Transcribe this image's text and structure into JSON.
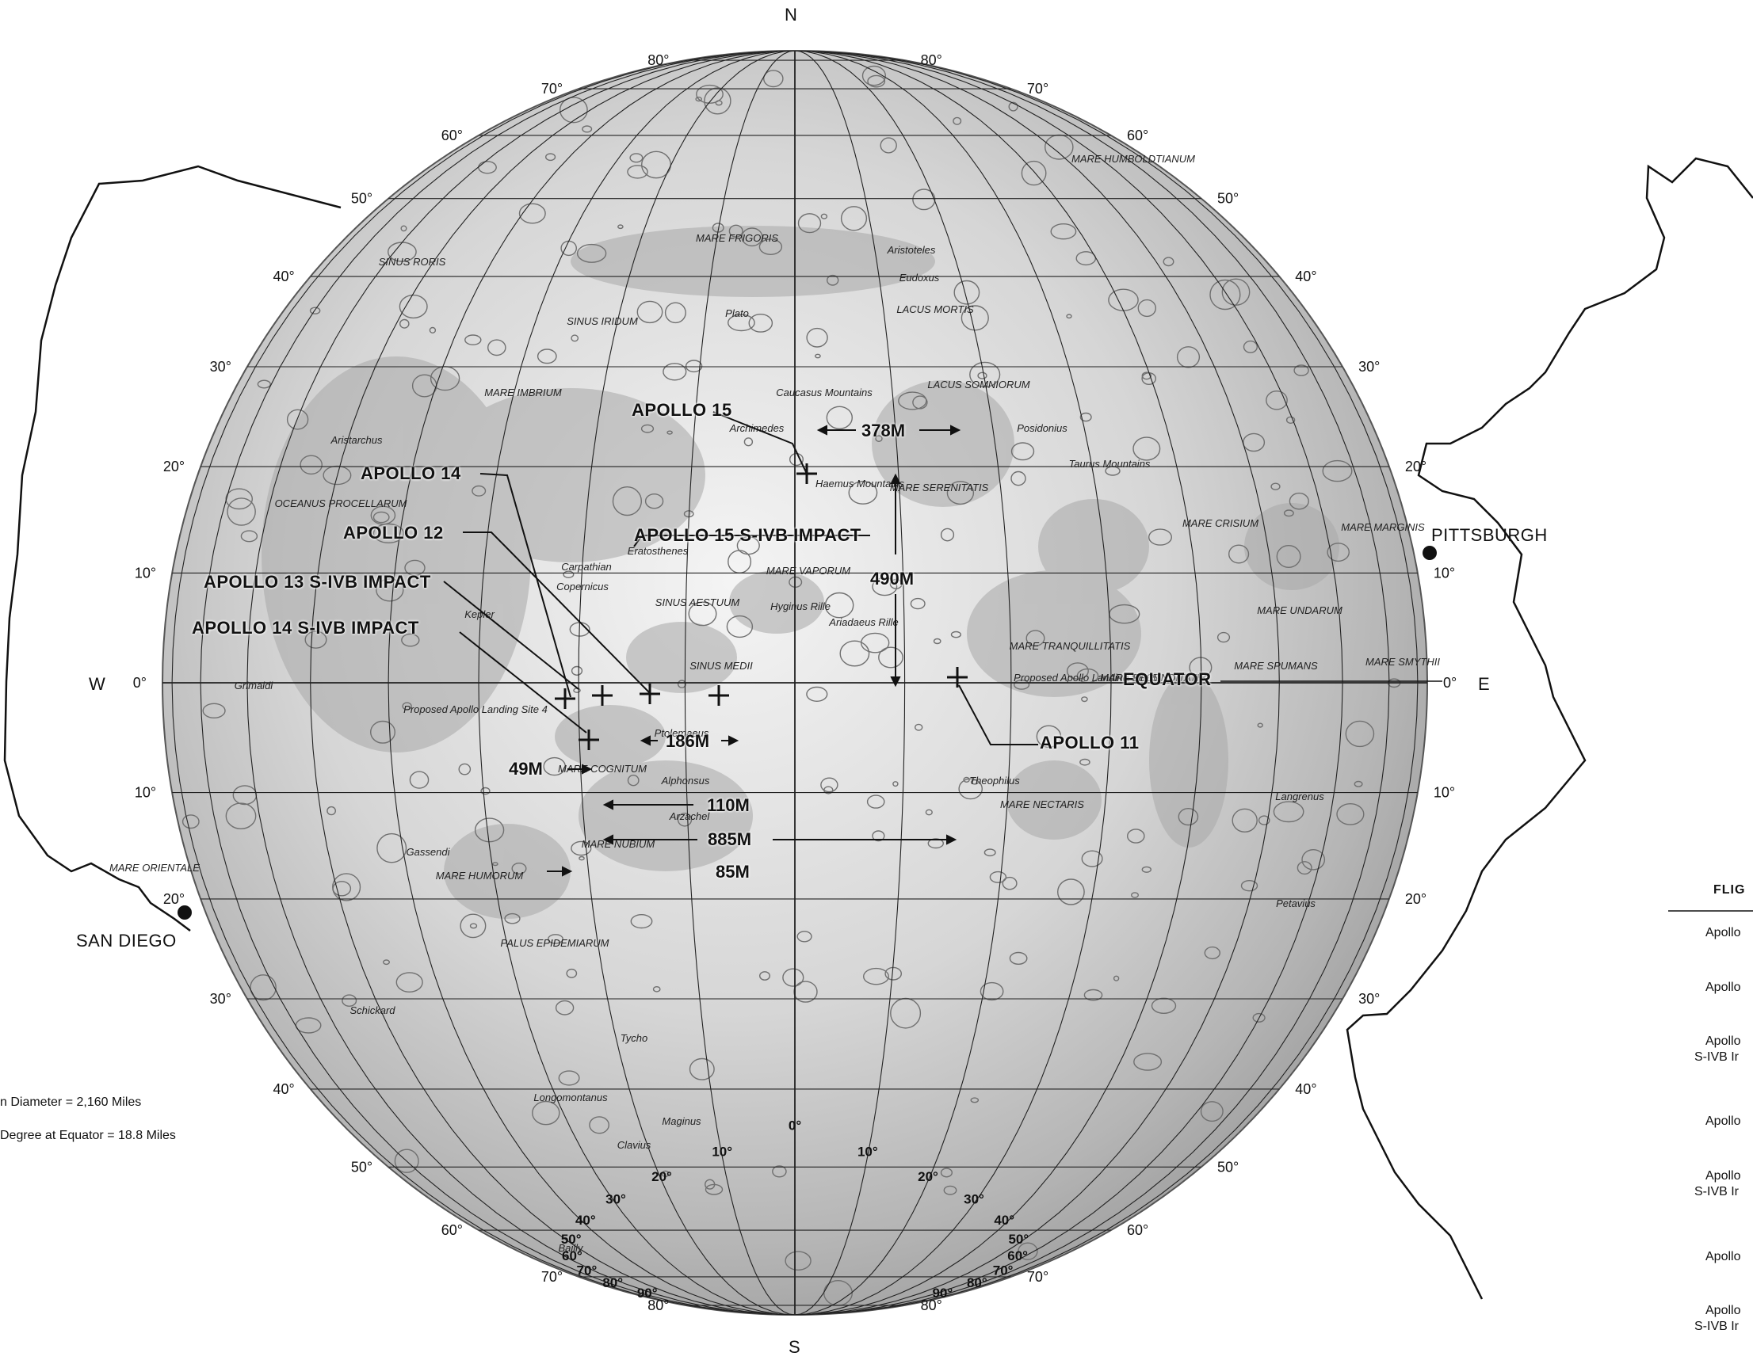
{
  "map": {
    "compass": {
      "north": "N",
      "south": "S",
      "east": "E",
      "west": "W"
    },
    "equator_label": "EQUATOR",
    "cities": [
      {
        "name": "SAN DIEGO",
        "id": "san-diego"
      },
      {
        "name": "PITTSBURGH",
        "id": "pittsburgh"
      }
    ],
    "landing_sites": [
      {
        "label": "APOLLO 15",
        "id": "apollo-15"
      },
      {
        "label": "APOLLO 14",
        "id": "apollo-14"
      },
      {
        "label": "APOLLO 12",
        "id": "apollo-12"
      },
      {
        "label": "APOLLO 15 S-IVB IMPACT",
        "id": "apollo-15-sivb-impact"
      },
      {
        "label": "APOLLO 13 S-IVB IMPACT",
        "id": "apollo-13-sivb-impact"
      },
      {
        "label": "APOLLO 14 S-IVB IMPACT",
        "id": "apollo-14-sivb-impact"
      },
      {
        "label": "APOLLO 11",
        "id": "apollo-11"
      }
    ],
    "distances": [
      {
        "label": "378M",
        "id": "dist-378m"
      },
      {
        "label": "490M",
        "id": "dist-490m"
      },
      {
        "label": "186M",
        "id": "dist-186m"
      },
      {
        "label": "49M",
        "id": "dist-49m"
      },
      {
        "label": "110M",
        "id": "dist-110m"
      },
      {
        "label": "885M",
        "id": "dist-885m"
      },
      {
        "label": "85M",
        "id": "dist-85m"
      }
    ],
    "regions": {
      "mare_frigoris": "MARE FRIGORIS",
      "mare_imbrium": "MARE IMBRIUM",
      "mare_serenitatis": "MARE SERENITATIS",
      "mare_tranquillitatis": "MARE TRANQUILLITATIS",
      "mare_crisium": "MARE CRISIUM",
      "mare_vaporum": "MARE VAPORUM",
      "mare_nubium": "MARE NUBIUM",
      "mare_humorum": "MARE HUMORUM",
      "mare_nectaris": "MARE NECTARIS",
      "mare_fecunditatis": "MARE FECUNDITATIS",
      "mare_cognitum": "MARE COGNITUM",
      "sinus_iridum": "SINUS IRIDUM",
      "sinus_medii": "SINUS MEDII",
      "sinus_aestuum": "SINUS AESTUUM",
      "sinus_roris": "SINUS RORIS",
      "lacus_somniorum": "LACUS SOMNIORUM",
      "lacus_mortis": "LACUS MORTIS",
      "mare_humboldtianum": "MARE HUMBOLDTIANUM",
      "mare_marginis": "MARE MARGINIS",
      "mare_undarum": "MARE UNDARUM",
      "mare_spumans": "MARE SPUMANS",
      "palus_epidemiarum": "PALUS EPIDEMIARUM",
      "oceanus": "OCEANUS PROCELLARUM",
      "mare_smythii": "MARE SMYTHII",
      "mare_orientale": "MARE ORIENTALE"
    },
    "features": {
      "caucasus": "Caucasus Mountains",
      "haemus": "Haemus Mountains",
      "taurus": "Taurus Mountains",
      "hyginus": "Hyginus Rille",
      "ariadaeus": "Ariadaeus Rille",
      "carpathian": "Carpathian",
      "plato": "Plato",
      "copernicus": "Copernicus",
      "kepler": "Kepler",
      "eratosthenes": "Eratosthenes",
      "archimedes": "Archimedes",
      "aristoteles": "Aristoteles",
      "eudoxus": "Eudoxus",
      "posidonius": "Posidonius",
      "gassendi": "Gassendi",
      "tycho": "Tycho",
      "clavius": "Clavius",
      "ptolemaeus": "Ptolemaeus",
      "alphonsus": "Alphonsus",
      "arzachel": "Arzachel",
      "theophilus": "Theophilus",
      "langrenus": "Langrenus",
      "petavius": "Petavius",
      "grimaldi": "Grimaldi",
      "schickard": "Schickard",
      "aristarchus": "Aristarchus",
      "longomontanus": "Longomontanus",
      "maginus": "Maginus",
      "bailly": "Bailly",
      "landing_site_4": "Proposed Apollo Landing Site 4",
      "landing_site_5": "Proposed Apollo Landing Site 5"
    },
    "lat_ticks": [
      "80°",
      "70°",
      "60°",
      "50°",
      "40°",
      "30°",
      "20°",
      "10°",
      "0°"
    ],
    "bottom_lon_ticks": [
      "90°",
      "80°",
      "70°",
      "60°",
      "50°",
      "40°",
      "30°",
      "20°",
      "10°",
      "0°"
    ]
  },
  "notes": {
    "diameter": "n Diameter = 2,160 Miles",
    "degree": "Degree at Equator = 18.8 Miles"
  },
  "legend": {
    "header": "FLIG",
    "items": [
      "Apollo",
      "Apollo",
      "Apollo",
      "S-IVB Ir",
      "Apollo",
      "Apollo",
      "S-IVB Ir",
      "Apollo",
      "Apollo",
      "S-IVB Ir"
    ]
  },
  "colors": {
    "ink": "#111111",
    "moon_light": "#f2f2f2",
    "moon_dark": "#9a9a9a",
    "paper": "#ffffff"
  }
}
